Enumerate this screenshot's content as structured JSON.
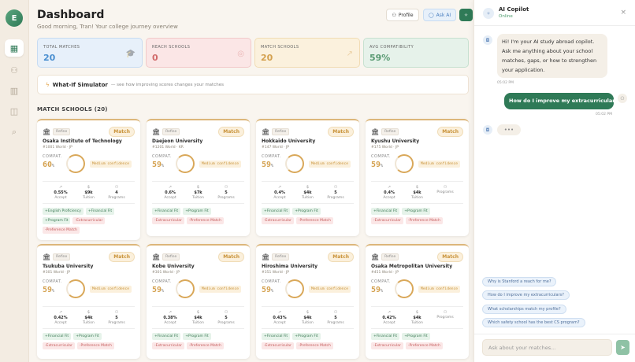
{
  "sidebar": {
    "avatar_initial": "E",
    "items": [
      {
        "icon": "grid-icon",
        "glyph": "▦"
      },
      {
        "icon": "user-icon",
        "glyph": "⚇"
      },
      {
        "icon": "chart-icon",
        "glyph": "▥"
      },
      {
        "icon": "map-icon",
        "glyph": "◫"
      },
      {
        "icon": "search-icon",
        "glyph": "⌕"
      }
    ]
  },
  "header": {
    "title": "Dashboard",
    "subtitle": "Good morning, Tran! Your college journey overview",
    "profile_label": "Profile",
    "ask_ai_label": "Ask AI"
  },
  "stats": [
    {
      "label": "TOTAL MATCHES",
      "value": "20",
      "color": "#4a8fd0",
      "bg": "#e7f0fa",
      "border": "#c7dcf2",
      "icon": "graduation-cap-icon",
      "glyph": "🎓"
    },
    {
      "label": "REACH SCHOOLS",
      "value": "0",
      "color": "#d16a6a",
      "bg": "#fbe6e6",
      "border": "#f2c9c9",
      "icon": "target-icon",
      "glyph": "◎"
    },
    {
      "label": "MATCH SCHOOLS",
      "value": "20",
      "color": "#d4a14f",
      "bg": "#fbf1dd",
      "border": "#f1dcb4",
      "icon": "trending-up-icon",
      "glyph": "↗"
    },
    {
      "label": "AVG COMPATIBILITY",
      "value": "59%",
      "color": "#5a9b73",
      "bg": "#e6f2ea",
      "border": "#c7e1d0",
      "icon": "",
      "glyph": ""
    }
  ],
  "simulator": {
    "title": "What-If Simulator",
    "desc": "— see how improving scores changes your matches"
  },
  "section_title": "MATCH SCHOOLS (20)",
  "card_common": {
    "refine": "Refine",
    "badge": "Match",
    "compat_label": "COMPAT.",
    "pct_unit": "%",
    "accept_label": "Accept",
    "tuition_label": "Tuition",
    "programs_label": "Programs"
  },
  "schools": [
    {
      "name": "Osaka Institute of Technology",
      "rank": "#1001 World · JP",
      "compat": "60",
      "confidence": "Medium confidence",
      "accept": "0.55%",
      "tuition": "$9k",
      "programs": "4",
      "tags": [
        [
          "+English Proficiency",
          "pos"
        ],
        [
          "+Financial Fit",
          "pos"
        ],
        [
          "+Program Fit",
          "pos"
        ],
        [
          "-Extracurricular",
          "neg"
        ],
        [
          "-Preference Match",
          "neg"
        ]
      ]
    },
    {
      "name": "Daejeon University",
      "rank": "#1201 World · KR",
      "compat": "59",
      "confidence": "Medium confidence",
      "accept": "0.6%",
      "tuition": "$7k",
      "programs": "5",
      "tags": [
        [
          "+Financial Fit",
          "pos"
        ],
        [
          "+Program Fit",
          "pos"
        ],
        [
          "-Extracurricular",
          "neg"
        ],
        [
          "-Preference Match",
          "neg"
        ]
      ]
    },
    {
      "name": "Hokkaido University",
      "rank": "#147 World · JP",
      "compat": "59",
      "confidence": "Medium confidence",
      "accept": "0.4%",
      "tuition": "$4k",
      "programs": "5",
      "tags": [
        [
          "+Financial Fit",
          "pos"
        ],
        [
          "+Program Fit",
          "pos"
        ],
        [
          "-Extracurricular",
          "neg"
        ],
        [
          "-Preference Match",
          "neg"
        ]
      ]
    },
    {
      "name": "Kyushu University",
      "rank": "#175 World · JP",
      "compat": "59",
      "confidence": "Medium confidence",
      "accept": "0.4%",
      "tuition": "$4k",
      "programs": "",
      "tags": [
        [
          "+Financial Fit",
          "pos"
        ],
        [
          "+Program Fit",
          "pos"
        ],
        [
          "-Extracurricular",
          "neg"
        ],
        [
          "-Preference Match",
          "neg"
        ]
      ]
    },
    {
      "name": "Tsukuba University",
      "rank": "#301 World · JP",
      "compat": "59",
      "confidence": "Medium confidence",
      "accept": "0.42%",
      "tuition": "$4k",
      "programs": "5",
      "tags": [
        [
          "+Financial Fit",
          "pos"
        ],
        [
          "+Program Fit",
          "pos"
        ],
        [
          "-Extracurricular",
          "neg"
        ],
        [
          "-Preference Match",
          "neg"
        ]
      ]
    },
    {
      "name": "Kobe University",
      "rank": "#301 World · JP",
      "compat": "59",
      "confidence": "Medium confidence",
      "accept": "0.38%",
      "tuition": "$4k",
      "programs": "5",
      "tags": [
        [
          "+Financial Fit",
          "pos"
        ],
        [
          "+Program Fit",
          "pos"
        ],
        [
          "-Extracurricular",
          "neg"
        ],
        [
          "-Preference Match",
          "neg"
        ]
      ]
    },
    {
      "name": "Hiroshima University",
      "rank": "#351 World · JP",
      "compat": "59",
      "confidence": "Medium confidence",
      "accept": "0.43%",
      "tuition": "$4k",
      "programs": "5",
      "tags": [
        [
          "+Financial Fit",
          "pos"
        ],
        [
          "+Program Fit",
          "pos"
        ],
        [
          "-Extracurricular",
          "neg"
        ],
        [
          "-Preference Match",
          "neg"
        ]
      ]
    },
    {
      "name": "Osaka Metropolitan University",
      "rank": "#451 World · JP",
      "compat": "59",
      "confidence": "Medium confidence",
      "accept": "0.42%",
      "tuition": "$4k",
      "programs": "",
      "tags": [
        [
          "+Financial Fit",
          "pos"
        ],
        [
          "+Program Fit",
          "pos"
        ],
        [
          "-Extracurricular",
          "neg"
        ],
        [
          "-Preference Match",
          "neg"
        ]
      ]
    }
  ],
  "copilot": {
    "title": "AI Copilot",
    "status": "Online",
    "messages": [
      {
        "from": "bot",
        "text": "Hi! I'm your AI study abroad copilot. Ask me anything about your school matches, gaps, or how to strengthen your application.",
        "time": "05:02 PM"
      },
      {
        "from": "user",
        "text": "How do I improve my extracurriculars?",
        "time": "05:02 PM"
      }
    ],
    "typing": "•••",
    "suggestions": [
      "Why is Stanford a reach for me?",
      "How do I improve my extracurriculars?",
      "What scholarships match my profile?",
      "Which safety school has the best CS program?"
    ],
    "input_placeholder": "Ask about your matches..."
  },
  "colors": {
    "accent": "#2f7a57",
    "gold": "#d4a14f"
  }
}
